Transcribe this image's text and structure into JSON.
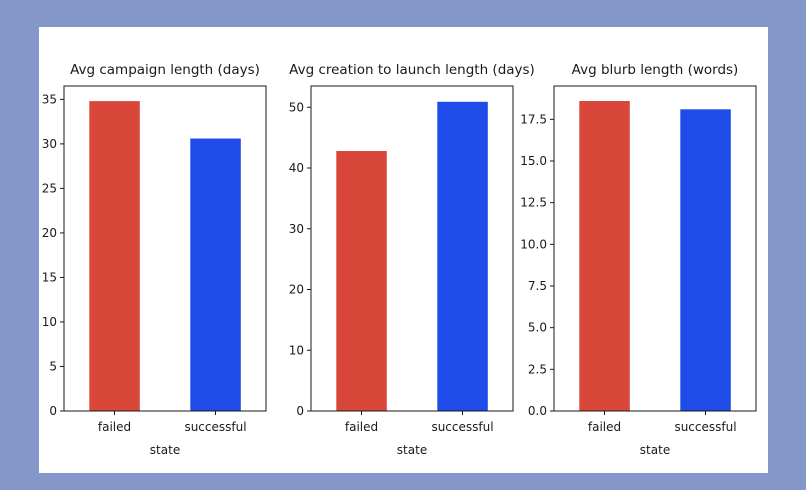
{
  "chart_data": [
    {
      "type": "bar",
      "title": "Avg campaign length (days)",
      "xlabel": "state",
      "ylabel": "",
      "categories": [
        "failed",
        "successful"
      ],
      "values": [
        34.8,
        30.6
      ],
      "colors": [
        "#d9473b",
        "#1f4ce8"
      ],
      "ylim": [
        0,
        36.5
      ],
      "yticks": [
        "0",
        "5",
        "10",
        "15",
        "20",
        "25",
        "30",
        "35"
      ],
      "ytick_values": [
        0,
        5,
        10,
        15,
        20,
        25,
        30,
        35
      ],
      "grid": false
    },
    {
      "type": "bar",
      "title": "Avg creation to launch length (days)",
      "xlabel": "state",
      "ylabel": "",
      "categories": [
        "failed",
        "successful"
      ],
      "values": [
        42.8,
        50.9
      ],
      "colors": [
        "#d9473b",
        "#1f4ce8"
      ],
      "ylim": [
        0,
        53.5
      ],
      "yticks": [
        "0",
        "10",
        "20",
        "30",
        "40",
        "50"
      ],
      "ytick_values": [
        0,
        10,
        20,
        30,
        40,
        50
      ],
      "grid": false
    },
    {
      "type": "bar",
      "title": "Avg blurb length (words)",
      "xlabel": "state",
      "ylabel": "",
      "categories": [
        "failed",
        "successful"
      ],
      "values": [
        18.6,
        18.1
      ],
      "colors": [
        "#d9473b",
        "#1f4ce8"
      ],
      "ylim": [
        0,
        19.5
      ],
      "yticks": [
        "0.0",
        "2.5",
        "5.0",
        "7.5",
        "10.0",
        "12.5",
        "15.0",
        "17.5"
      ],
      "ytick_values": [
        0,
        2.5,
        5,
        7.5,
        10,
        12.5,
        15,
        17.5
      ],
      "grid": false
    }
  ]
}
